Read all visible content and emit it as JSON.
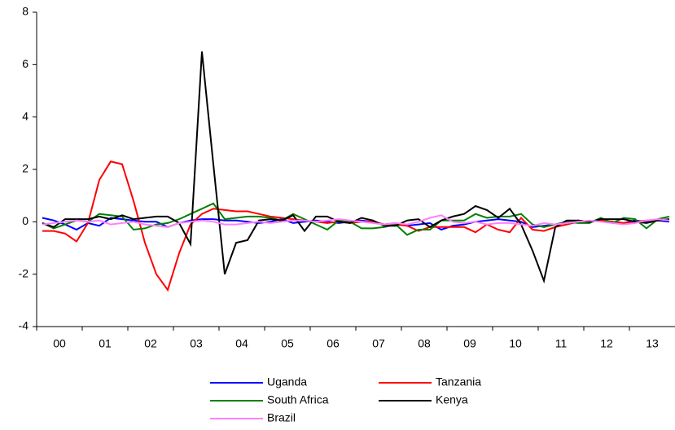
{
  "chart_data": {
    "type": "line",
    "categories": [
      "00",
      null,
      null,
      null,
      "01",
      null,
      null,
      null,
      "02",
      null,
      null,
      null,
      "03",
      null,
      null,
      null,
      "04",
      null,
      null,
      null,
      "05",
      null,
      null,
      null,
      "06",
      null,
      null,
      null,
      "07",
      null,
      null,
      null,
      "08",
      null,
      null,
      null,
      "09",
      null,
      null,
      null,
      "10",
      null,
      null,
      null,
      "11",
      null,
      null,
      null,
      "12",
      null,
      null,
      null,
      "13",
      null,
      null,
      null
    ],
    "ylim": [
      -4,
      8
    ],
    "yticks": [
      -4,
      -2,
      0,
      2,
      4,
      6,
      8
    ],
    "grid": false,
    "legend": "bottom",
    "series": [
      {
        "name": "Uganda",
        "color": "#0000ff",
        "values": [
          0.15,
          0.05,
          -0.1,
          -0.3,
          -0.05,
          -0.15,
          0.15,
          0.1,
          0.05,
          0,
          0,
          -0.2,
          -0.05,
          0.05,
          0.1,
          0.1,
          0.05,
          0.05,
          0,
          -0.05,
          0,
          0.1,
          -0.05,
          0,
          0.05,
          0,
          -0.05,
          0,
          0.05,
          0,
          -0.1,
          -0.05,
          -0.15,
          -0.1,
          -0.05,
          -0.3,
          -0.15,
          -0.1,
          0,
          0.05,
          0.1,
          0.05,
          0,
          -0.2,
          -0.15,
          -0.1,
          0,
          0.05,
          0,
          0.05,
          0,
          -0.05,
          0.05,
          0,
          0.05,
          0
        ]
      },
      {
        "name": "Tanzania",
        "color": "#ff0000",
        "values": [
          -0.35,
          -0.35,
          -0.45,
          -0.75,
          -0.05,
          1.6,
          2.3,
          2.2,
          0.8,
          -0.8,
          -2.0,
          -2.6,
          -1.2,
          -0.1,
          0.3,
          0.5,
          0.45,
          0.4,
          0.4,
          0.3,
          0.2,
          0.15,
          0.1,
          0.05,
          0,
          -0.05,
          0,
          -0.05,
          0,
          0,
          -0.1,
          -0.1,
          -0.15,
          -0.35,
          -0.2,
          -0.2,
          -0.2,
          -0.2,
          -0.4,
          -0.1,
          -0.3,
          -0.4,
          0.15,
          -0.3,
          -0.35,
          -0.2,
          -0.1,
          0,
          0,
          0.05,
          0,
          -0.05,
          0,
          0.05,
          0.05,
          0.1
        ]
      },
      {
        "name": "South Africa",
        "color": "#008000",
        "values": [
          -0.05,
          -0.25,
          -0.1,
          0.05,
          0,
          0.3,
          0.25,
          0.2,
          -0.3,
          -0.25,
          -0.1,
          -0.05,
          0.1,
          0.3,
          0.5,
          0.7,
          0.1,
          0.15,
          0.2,
          0.2,
          0.15,
          0.05,
          0.3,
          0.1,
          -0.1,
          -0.3,
          0.05,
          0,
          -0.25,
          -0.25,
          -0.2,
          -0.1,
          -0.5,
          -0.3,
          -0.3,
          0.05,
          0.05,
          0.05,
          0.3,
          0.15,
          0.2,
          0.2,
          0.3,
          -0.1,
          -0.2,
          -0.1,
          0,
          -0.05,
          -0.05,
          0.15,
          -0.05,
          0.15,
          0.1,
          -0.25,
          0.1,
          0.2
        ]
      },
      {
        "name": "Kenya",
        "color": "#000000",
        "values": [
          -0.05,
          -0.2,
          0.1,
          0.1,
          0.1,
          0.2,
          0.1,
          0.25,
          0.1,
          0.15,
          0.2,
          0.2,
          -0.05,
          -0.85,
          6.5,
          2.2,
          -2,
          -0.8,
          -0.7,
          0.05,
          0.1,
          0.05,
          0.25,
          -0.35,
          0.2,
          0.2,
          0,
          -0.05,
          0.15,
          0.05,
          -0.15,
          -0.15,
          0.05,
          0.1,
          -0.2,
          0.05,
          0.2,
          0.3,
          0.6,
          0.45,
          0.15,
          0.5,
          -0.1,
          -1.1,
          -2.25,
          -0.2,
          0.05,
          0.05,
          0,
          0.1,
          0.1,
          0.1,
          0,
          -0.05,
          0.05,
          0.1
        ]
      },
      {
        "name": "Brazil",
        "color": "#ff80ff",
        "values": [
          -0.1,
          -0.05,
          0,
          0.05,
          0,
          0.05,
          -0.1,
          -0.05,
          0,
          -0.1,
          -0.15,
          -0.2,
          -0.05,
          0,
          0.05,
          0,
          -0.1,
          -0.1,
          -0.05,
          0,
          -0.05,
          0,
          0.05,
          0.05,
          0,
          0.05,
          0.1,
          0.05,
          0,
          -0.05,
          -0.1,
          -0.05,
          -0.1,
          0,
          0.15,
          0.25,
          0,
          -0.05,
          0,
          -0.1,
          -0.05,
          -0.05,
          -0.1,
          -0.15,
          -0.05,
          -0.1,
          -0.05,
          0,
          0.05,
          0,
          -0.05,
          -0.1,
          -0.05,
          0.05,
          0.1,
          0.05
        ]
      }
    ]
  }
}
